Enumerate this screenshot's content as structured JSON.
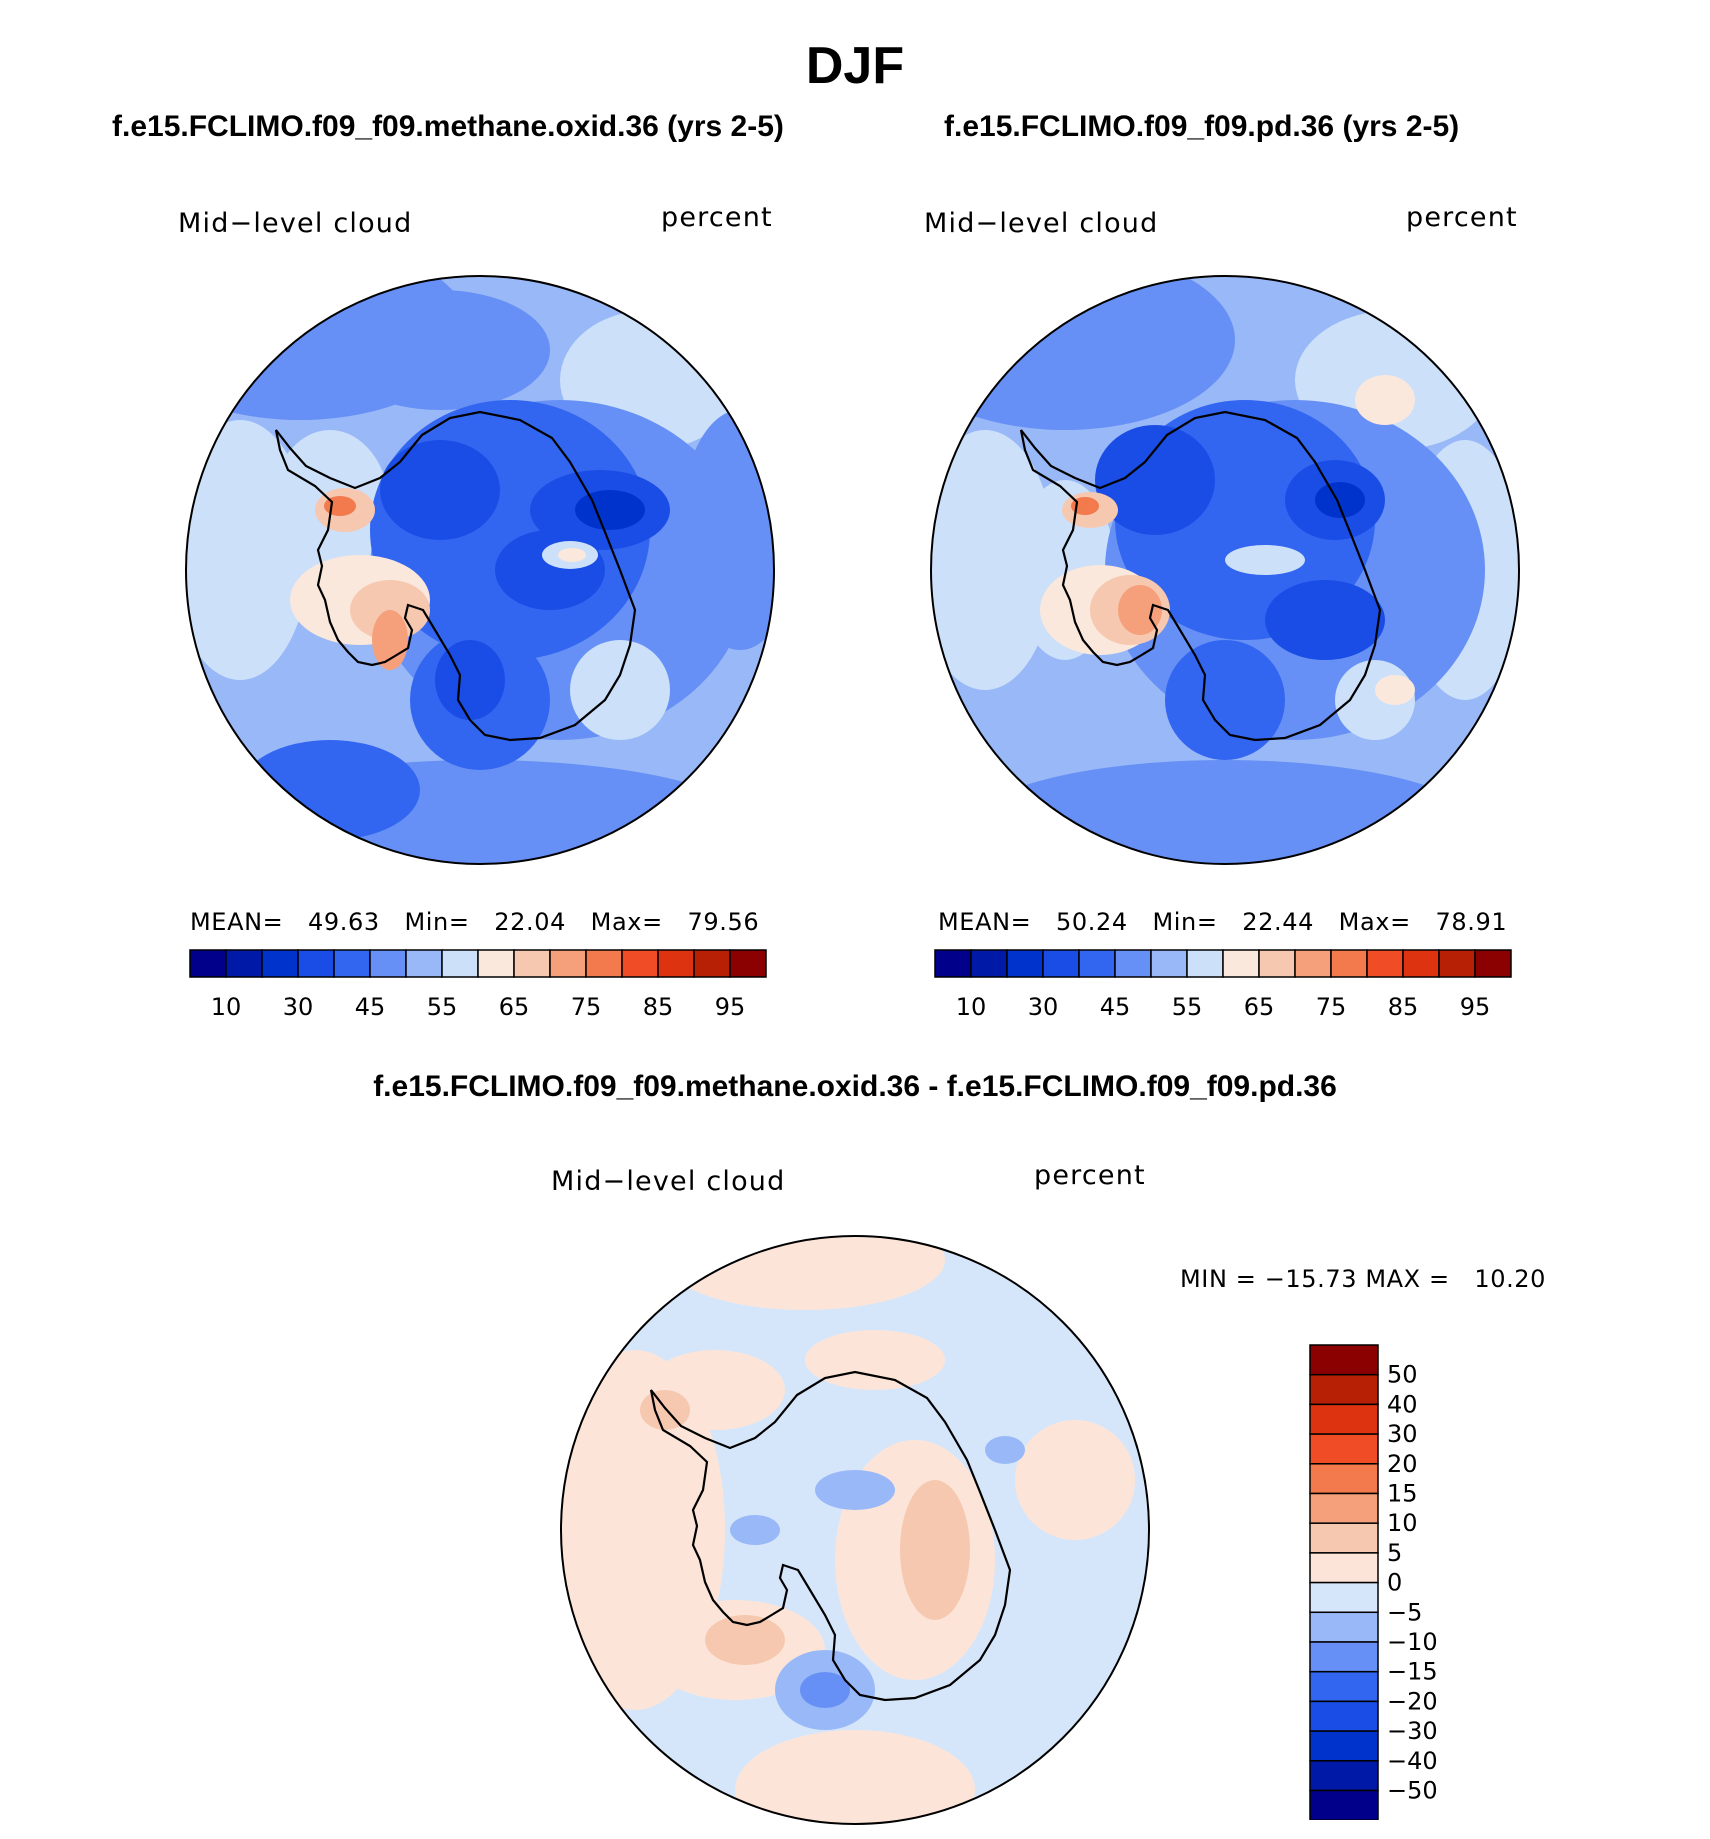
{
  "figure": {
    "title": "DJF",
    "colors": {
      "abs_scale": [
        "#00008b",
        "#0019a6",
        "#0033cc",
        "#1a4de6",
        "#3366f0",
        "#6690f5",
        "#99b8f7",
        "#cce0fa",
        "#fae8dc",
        "#f7c8b0",
        "#f5a07a",
        "#f27a4d",
        "#f04d26",
        "#dd3310",
        "#b82005",
        "#8b0000"
      ],
      "diff_scale": [
        "#00008b",
        "#0019a6",
        "#0033cc",
        "#1a4de6",
        "#3366f0",
        "#6690f5",
        "#99b8f7",
        "#d6e6fa",
        "#fce5d8",
        "#f7c8b0",
        "#f5a07a",
        "#f27a4d",
        "#f04d26",
        "#dd3310",
        "#b82005",
        "#8b0000"
      ]
    }
  },
  "panels": [
    {
      "title": "f.e15.FCLIMO.f09_f09.methane.oxid.36 (yrs 2-5)",
      "variable": "Mid−level cloud",
      "units": "percent",
      "stats": {
        "mean_label": "MEAN=",
        "mean": "49.63",
        "min_label": "Min=",
        "min": "22.04",
        "max_label": "Max=",
        "max": "79.56"
      },
      "colorbar_labels": [
        "10",
        "30",
        "45",
        "55",
        "65",
        "75",
        "85",
        "95"
      ]
    },
    {
      "title": "f.e15.FCLIMO.f09_f09.pd.36 (yrs 2-5)",
      "variable": "Mid−level cloud",
      "units": "percent",
      "stats": {
        "mean_label": "MEAN=",
        "mean": "50.24",
        "min_label": "Min=",
        "min": "22.44",
        "max_label": "Max=",
        "max": "78.91"
      },
      "colorbar_labels": [
        "10",
        "30",
        "45",
        "55",
        "65",
        "75",
        "85",
        "95"
      ]
    }
  ],
  "difference": {
    "title": "f.e15.FCLIMO.f09_f09.methane.oxid.36 - f.e15.FCLIMO.f09_f09.pd.36",
    "variable": "Mid−level cloud",
    "units": "percent",
    "minmax": "MIN = −15.73 MAX =   10.20",
    "colorbar_labels": [
      "50",
      "40",
      "30",
      "20",
      "15",
      "10",
      "5",
      "0",
      "−5",
      "−10",
      "−15",
      "−20",
      "−30",
      "−40",
      "−50"
    ]
  }
}
